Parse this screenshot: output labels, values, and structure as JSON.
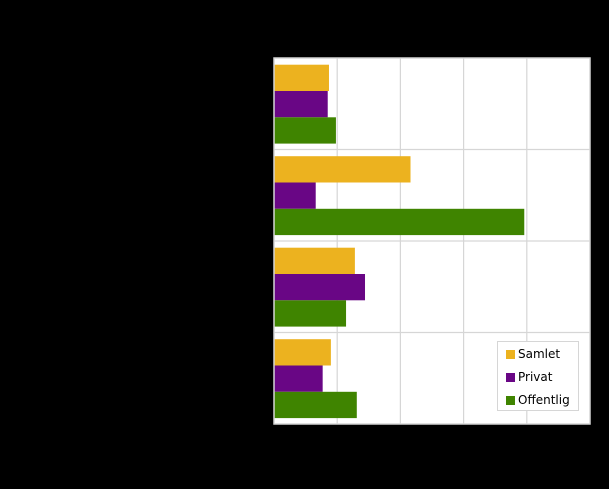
{
  "chart_data": {
    "type": "bar",
    "orientation": "horizontal",
    "title": "",
    "xlabel": "",
    "ylabel": "",
    "categories": [
      "",
      "",
      "",
      ""
    ],
    "series": [
      {
        "name": "Samlet",
        "color": "#ECB21F",
        "values": [
          0.87,
          2.16,
          1.28,
          0.9
        ]
      },
      {
        "name": "Privat",
        "color": "#690685",
        "values": [
          0.85,
          0.66,
          1.44,
          0.77
        ]
      },
      {
        "name": "Offentlig",
        "color": "#3F8400",
        "values": [
          0.98,
          3.96,
          1.14,
          1.31
        ]
      }
    ],
    "xlim": [
      0,
      5
    ],
    "x_gridlines": 5,
    "x_unit_note": "values in gridline intervals; tick labels not visible",
    "grid": true,
    "legend_position": "lower right inside plot"
  },
  "legend": {
    "items": [
      {
        "label": "Samlet",
        "color": "#ECB21F"
      },
      {
        "label": "Privat",
        "color": "#690685"
      },
      {
        "label": "Offentlig",
        "color": "#3F8400"
      }
    ]
  },
  "colors": {
    "background": "#000000",
    "plot_background": "#FFFFFF",
    "gridline": "#D6D6D6"
  }
}
